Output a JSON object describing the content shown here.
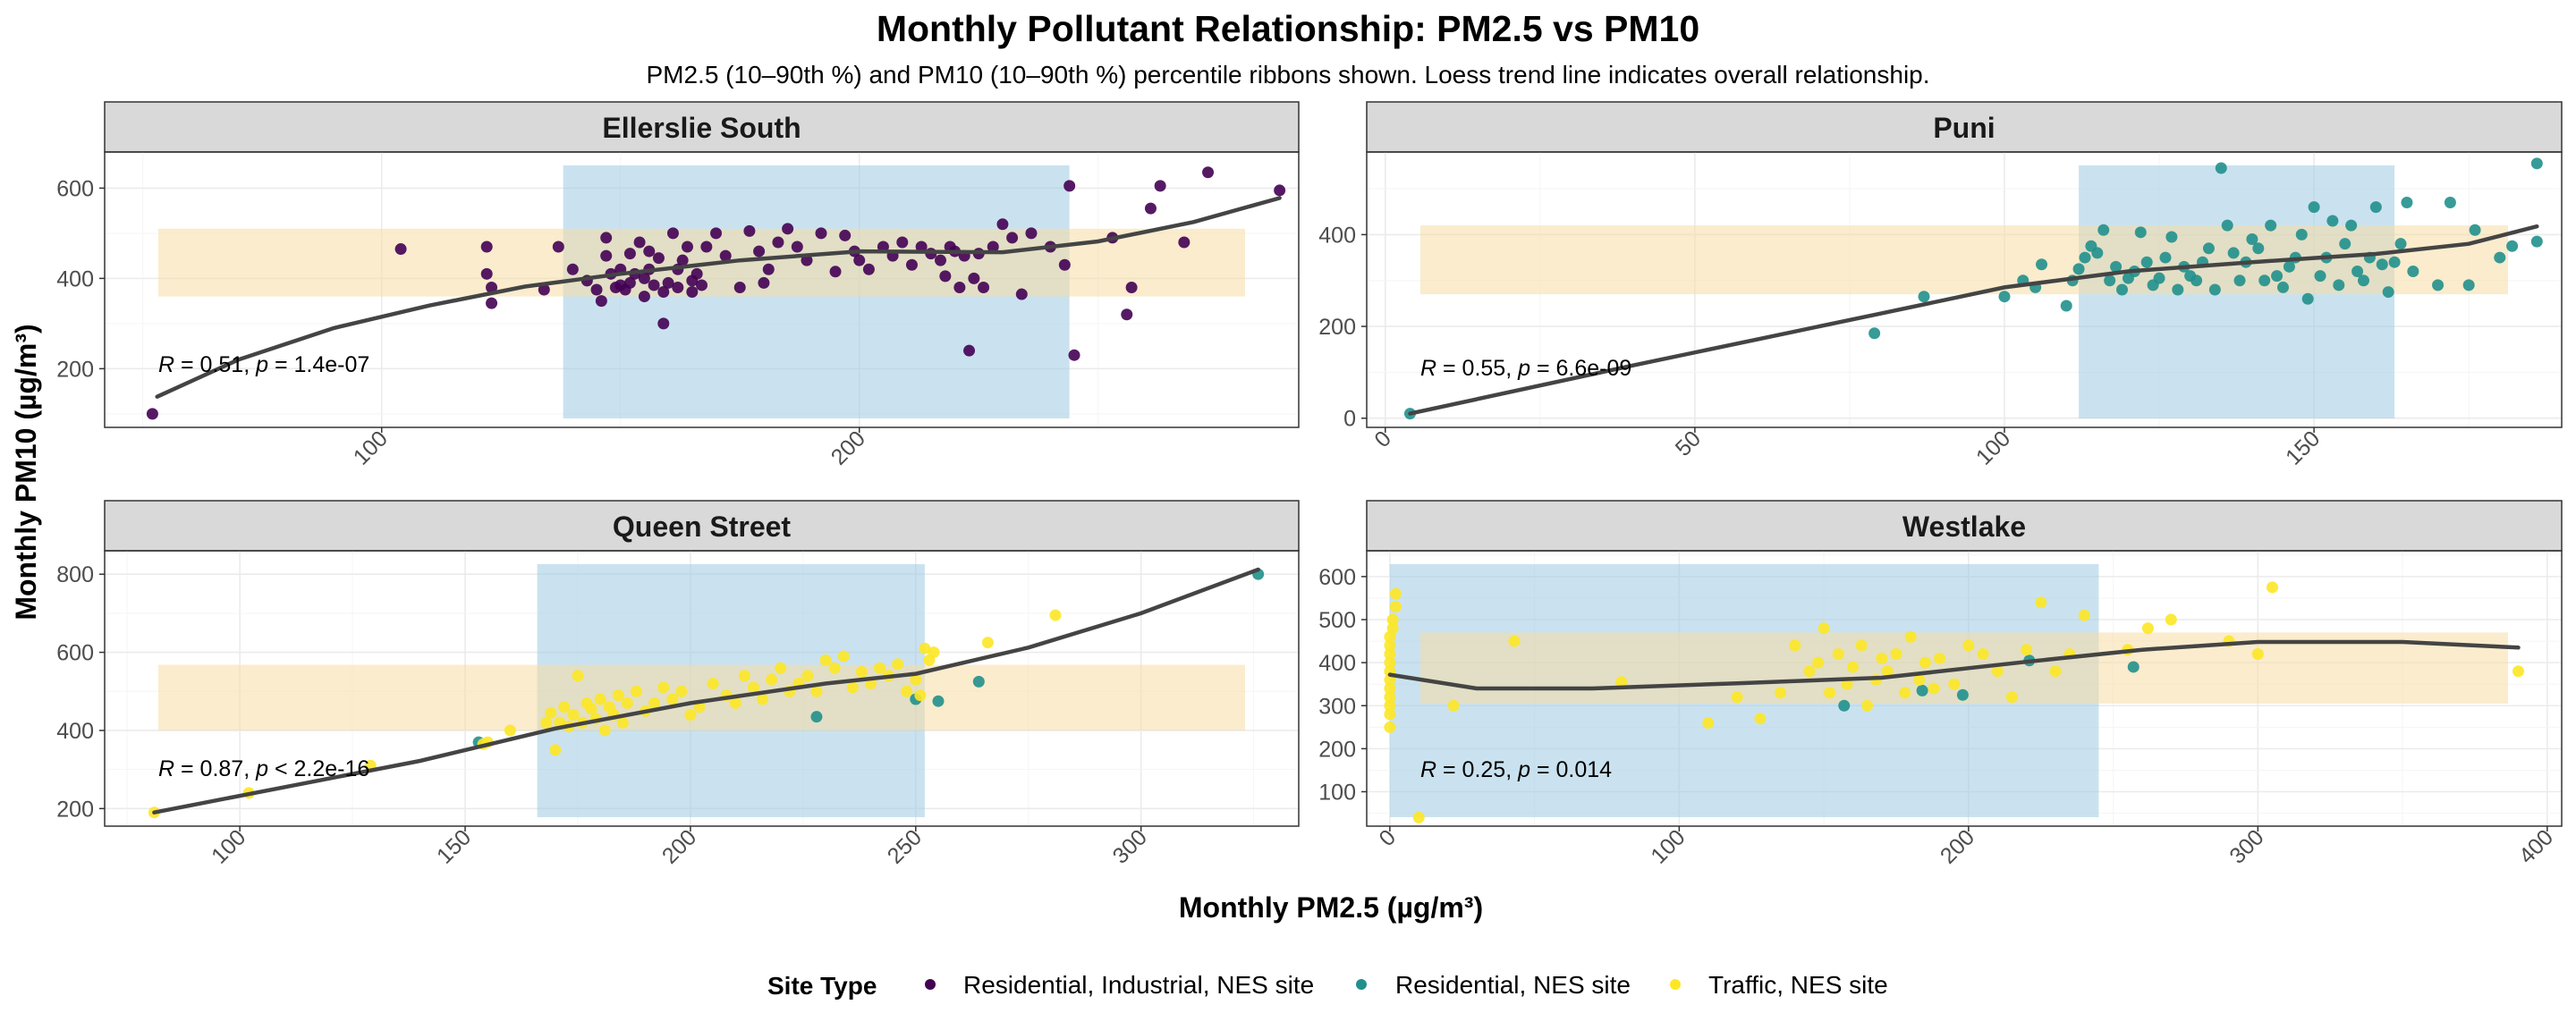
{
  "title": "Monthly Pollutant Relationship: PM2.5 vs PM10",
  "subtitle": "PM2.5 (10–90th %) and PM10 (10–90th %) percentile ribbons shown. Loess trend line indicates overall relationship.",
  "xlabel": "Monthly PM2.5 (µg/m³)",
  "ylabel": "Monthly PM10 (µg/m³)",
  "legend": {
    "title": "Site Type",
    "items": [
      {
        "label": "Residential, Industrial, NES site",
        "color": "#440154"
      },
      {
        "label": "Residential, NES site",
        "color": "#21908C"
      },
      {
        "label": "Traffic, NES site",
        "color": "#FDE725"
      }
    ]
  },
  "colors": {
    "band_pm25": "#9ECAE1",
    "band_pm10": "#F6DDA4",
    "trend": "#444444",
    "strip_bg": "#D9D9D9"
  },
  "chart_data": [
    {
      "type": "scatter",
      "panel": "Ellerslie South",
      "xlim": [
        42,
        292
      ],
      "ylim": [
        70,
        680
      ],
      "xticks": [
        100,
        200
      ],
      "yticks": [
        200,
        400,
        600
      ],
      "grid": true,
      "annotation": {
        "r": "0.51",
        "p_sign": "=",
        "p": "1.4e-07"
      },
      "band_pm25": [
        138,
        244
      ],
      "band_pm10": [
        360,
        510
      ],
      "trend": [
        [
          53,
          138
        ],
        [
          70,
          220
        ],
        [
          90,
          290
        ],
        [
          110,
          340
        ],
        [
          130,
          382
        ],
        [
          150,
          410
        ],
        [
          175,
          440
        ],
        [
          200,
          460
        ],
        [
          230,
          458
        ],
        [
          250,
          482
        ],
        [
          270,
          525
        ],
        [
          288,
          578
        ]
      ],
      "points": [
        {
          "group": 0,
          "x": [
            52,
            104,
            122,
            122,
            123,
            123,
            134,
            137,
            140,
            143,
            145,
            146,
            147,
            147,
            148,
            149,
            150,
            150,
            151,
            152,
            152,
            153,
            154,
            155,
            155,
            156,
            156,
            157,
            158,
            159,
            159,
            160,
            161,
            162,
            162,
            163,
            164,
            165,
            165,
            166,
            167,
            168,
            170,
            172,
            175,
            177,
            179,
            180,
            181,
            183,
            185,
            187,
            189,
            192,
            195,
            197,
            199,
            200,
            202,
            205,
            207,
            209,
            211,
            213,
            215,
            217,
            218,
            219,
            220,
            221,
            222,
            223,
            224,
            225,
            226,
            228,
            230,
            232,
            234,
            236,
            240,
            243,
            244,
            245,
            253,
            256,
            257,
            261,
            263,
            268,
            273,
            288
          ],
          "y": [
            100,
            465,
            470,
            410,
            380,
            345,
            375,
            470,
            420,
            395,
            375,
            350,
            450,
            490,
            410,
            380,
            385,
            420,
            375,
            455,
            390,
            410,
            480,
            400,
            360,
            460,
            420,
            385,
            445,
            300,
            370,
            390,
            500,
            420,
            380,
            440,
            470,
            370,
            395,
            410,
            385,
            470,
            500,
            450,
            380,
            505,
            460,
            390,
            420,
            480,
            510,
            470,
            440,
            500,
            415,
            495,
            460,
            440,
            420,
            470,
            450,
            480,
            430,
            470,
            455,
            440,
            405,
            470,
            460,
            380,
            450,
            240,
            400,
            455,
            380,
            470,
            520,
            490,
            365,
            500,
            470,
            430,
            605,
            230,
            490,
            320,
            380,
            555,
            605,
            480,
            635,
            595
          ]
        }
      ]
    },
    {
      "type": "scatter",
      "panel": "Puni",
      "xlim": [
        -3,
        190
      ],
      "ylim": [
        -20,
        580
      ],
      "xticks": [
        0,
        50,
        100,
        150
      ],
      "yticks": [
        0,
        200,
        400
      ],
      "grid": true,
      "annotation": {
        "r": "0.55",
        "p_sign": "=",
        "p": "6.6e-09"
      },
      "band_pm25": [
        112,
        163
      ],
      "band_pm10": [
        270,
        420
      ],
      "trend": [
        [
          4,
          10
        ],
        [
          40,
          115
        ],
        [
          80,
          228
        ],
        [
          100,
          285
        ],
        [
          120,
          320
        ],
        [
          140,
          340
        ],
        [
          160,
          358
        ],
        [
          175,
          380
        ],
        [
          186,
          418
        ]
      ],
      "points": [
        {
          "group": 1,
          "x": [
            4,
            79,
            87,
            100,
            103,
            105,
            106,
            110,
            111,
            112,
            113,
            114,
            115,
            116,
            117,
            118,
            119,
            120,
            121,
            122,
            123,
            124,
            125,
            126,
            127,
            128,
            129,
            130,
            131,
            132,
            133,
            134,
            135,
            136,
            137,
            138,
            139,
            140,
            141,
            142,
            143,
            144,
            145,
            146,
            147,
            148,
            149,
            150,
            151,
            152,
            153,
            154,
            155,
            156,
            157,
            158,
            159,
            160,
            161,
            162,
            163,
            164,
            165,
            166,
            170,
            172,
            175,
            176,
            180,
            182,
            186,
            186
          ],
          "y": [
            10,
            185,
            265,
            265,
            300,
            285,
            335,
            245,
            300,
            325,
            350,
            375,
            360,
            410,
            300,
            330,
            280,
            305,
            320,
            405,
            340,
            290,
            305,
            350,
            395,
            280,
            330,
            310,
            300,
            340,
            370,
            280,
            545,
            420,
            360,
            300,
            340,
            390,
            370,
            300,
            420,
            310,
            285,
            330,
            350,
            400,
            260,
            460,
            310,
            350,
            430,
            290,
            380,
            420,
            320,
            300,
            350,
            460,
            335,
            275,
            340,
            380,
            470,
            320,
            290,
            470,
            290,
            410,
            350,
            375,
            555,
            385
          ]
        }
      ]
    },
    {
      "type": "scatter",
      "panel": "Queen Street",
      "xlim": [
        70,
        335
      ],
      "ylim": [
        155,
        860
      ],
      "xticks": [
        100,
        150,
        200,
        250,
        300
      ],
      "yticks": [
        200,
        400,
        600,
        800
      ],
      "grid": true,
      "annotation": {
        "r": "0.87",
        "p_sign": "<",
        "p": "2.2e-16"
      },
      "band_pm25": [
        166,
        252
      ],
      "band_pm10": [
        400,
        568
      ],
      "trend": [
        [
          81,
          190
        ],
        [
          110,
          255
        ],
        [
          140,
          322
        ],
        [
          170,
          405
        ],
        [
          200,
          470
        ],
        [
          230,
          520
        ],
        [
          250,
          545
        ],
        [
          275,
          612
        ],
        [
          300,
          700
        ],
        [
          326,
          812
        ]
      ],
      "points": [
        {
          "group": 1,
          "x": [
            153,
            228,
            250,
            255,
            264,
            326
          ],
          "y": [
            370,
            435,
            480,
            475,
            525,
            800
          ]
        },
        {
          "group": 2,
          "x": [
            81,
            102,
            129,
            154,
            155,
            160,
            168,
            169,
            170,
            171,
            172,
            173,
            174,
            175,
            176,
            177,
            178,
            179,
            180,
            181,
            182,
            183,
            184,
            185,
            186,
            188,
            190,
            192,
            194,
            196,
            198,
            200,
            202,
            205,
            208,
            210,
            212,
            214,
            216,
            218,
            220,
            222,
            224,
            226,
            228,
            230,
            232,
            234,
            236,
            238,
            240,
            242,
            244,
            246,
            248,
            250,
            251,
            252,
            253,
            254,
            266,
            281
          ],
          "y": [
            190,
            240,
            310,
            365,
            370,
            400,
            420,
            445,
            350,
            420,
            460,
            410,
            440,
            540,
            420,
            470,
            455,
            430,
            480,
            400,
            460,
            440,
            490,
            420,
            470,
            500,
            450,
            470,
            510,
            480,
            500,
            440,
            460,
            520,
            490,
            470,
            540,
            510,
            480,
            530,
            560,
            500,
            520,
            540,
            500,
            580,
            560,
            590,
            510,
            550,
            520,
            560,
            540,
            570,
            500,
            530,
            490,
            610,
            580,
            600,
            625,
            695
          ]
        }
      ]
    },
    {
      "type": "scatter",
      "panel": "Westlake",
      "xlim": [
        -8,
        405
      ],
      "ylim": [
        20,
        660
      ],
      "xticks": [
        0,
        100,
        200,
        300,
        400
      ],
      "yticks": [
        100,
        200,
        300,
        400,
        500,
        600
      ],
      "grid": true,
      "annotation": {
        "r": "0.25",
        "p_sign": "=",
        "p": "0.014"
      },
      "band_pm25": [
        0,
        245
      ],
      "band_pm10": [
        305,
        470
      ],
      "trend": [
        [
          0,
          372
        ],
        [
          30,
          340
        ],
        [
          70,
          340
        ],
        [
          120,
          352
        ],
        [
          170,
          365
        ],
        [
          220,
          402
        ],
        [
          260,
          430
        ],
        [
          300,
          448
        ],
        [
          350,
          448
        ],
        [
          390,
          435
        ]
      ],
      "points": [
        {
          "group": 1,
          "x": [
            157,
            184,
            198,
            221,
            257
          ],
          "y": [
            300,
            335,
            325,
            405,
            390
          ]
        },
        {
          "group": 2,
          "x": [
            0,
            0,
            0,
            0,
            0,
            0,
            0,
            0,
            0,
            0,
            0,
            1,
            1,
            2,
            2,
            10,
            22,
            43,
            80,
            110,
            120,
            128,
            135,
            140,
            145,
            148,
            150,
            152,
            155,
            158,
            160,
            163,
            165,
            168,
            170,
            172,
            175,
            178,
            180,
            183,
            185,
            188,
            190,
            195,
            200,
            205,
            210,
            215,
            220,
            225,
            230,
            235,
            240,
            255,
            262,
            270,
            290,
            300,
            305,
            390
          ],
          "y": [
            250,
            280,
            300,
            320,
            340,
            360,
            380,
            400,
            420,
            440,
            460,
            480,
            500,
            530,
            560,
            40,
            300,
            450,
            355,
            260,
            320,
            270,
            330,
            440,
            380,
            400,
            480,
            330,
            420,
            350,
            390,
            440,
            300,
            360,
            410,
            380,
            420,
            330,
            460,
            360,
            400,
            340,
            410,
            350,
            440,
            420,
            380,
            320,
            430,
            540,
            380,
            420,
            510,
            430,
            480,
            500,
            450,
            420,
            575,
            380
          ]
        }
      ]
    }
  ]
}
